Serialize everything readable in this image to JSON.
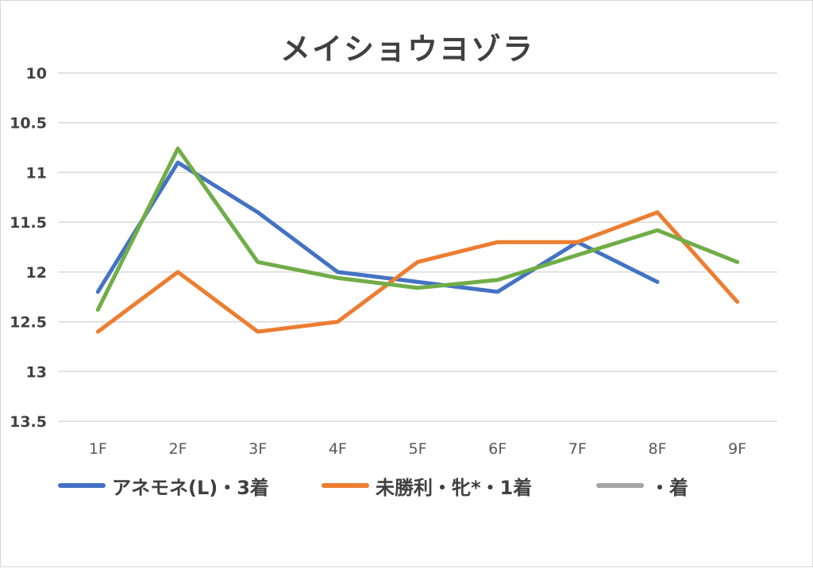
{
  "chart_data": {
    "type": "line",
    "title": "メイショウヨゾラ",
    "xlabel": "",
    "ylabel": "",
    "y_inverted": true,
    "ylim": [
      10,
      13.5
    ],
    "yticks": [
      "10",
      "10.5",
      "11",
      "11.5",
      "12",
      "12.5",
      "13",
      "13.5"
    ],
    "ytick_values": [
      10,
      10.5,
      11,
      11.5,
      12,
      12.5,
      13,
      13.5
    ],
    "categories": [
      "1F",
      "2F",
      "3F",
      "4F",
      "5F",
      "6F",
      "7F",
      "8F",
      "9F"
    ],
    "grid": true,
    "legend_position": "bottom",
    "series": [
      {
        "name": "アネモネ(L)・3着",
        "color": "#4472c4",
        "values": [
          12.2,
          10.9,
          11.4,
          12.0,
          12.1,
          12.2,
          11.7,
          12.1,
          null
        ]
      },
      {
        "name": "未勝利・牝*・1着",
        "color": "#ed7d31",
        "values": [
          12.6,
          12.0,
          12.6,
          12.5,
          11.9,
          11.7,
          11.7,
          11.4,
          12.3
        ]
      },
      {
        "name": "・着",
        "color": "#a5a5a5",
        "values": [
          null,
          null,
          null,
          null,
          null,
          null,
          null,
          null,
          null
        ]
      },
      {
        "name": "",
        "color": "#70ad47",
        "values": [
          12.38,
          10.76,
          11.9,
          12.06,
          12.16,
          12.08,
          11.83,
          11.58,
          11.9
        ]
      }
    ]
  }
}
